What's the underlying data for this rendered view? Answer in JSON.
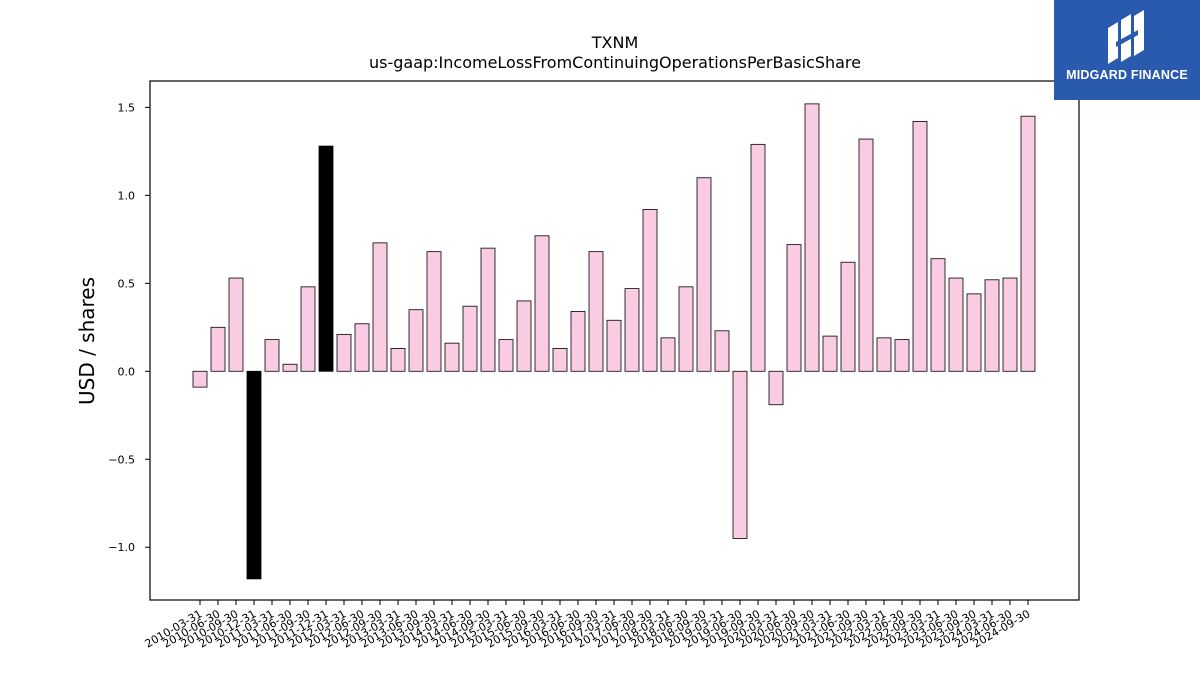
{
  "brand": {
    "name": "MIDGARD FINANCE",
    "color": "#2a5aad",
    "icon": "midgard-logo-icon"
  },
  "chart_data": {
    "type": "bar",
    "title": "TXNM",
    "subtitle": "us-gaap:IncomeLossFromContinuingOperationsPerBasicShare",
    "ylabel": "USD / shares",
    "xlabel": "",
    "ylim": [
      -1.3,
      1.65
    ],
    "yticks": [
      -1.0,
      -0.5,
      0.0,
      0.5,
      1.0,
      1.5
    ],
    "ytick_labels": [
      "−1.0",
      "−0.5",
      "0.0",
      "0.5",
      "1.0",
      "1.5"
    ],
    "grid": false,
    "bar_color": "#f9cce3",
    "highlight_color": "#000000",
    "categories": [
      "2010-03-31",
      "2010-06-30",
      "2010-09-30",
      "2010-12-31",
      "2011-03-31",
      "2011-06-30",
      "2011-09-30",
      "2011-12-31",
      "2012-03-31",
      "2012-06-30",
      "2012-09-30",
      "2013-03-31",
      "2013-06-30",
      "2013-09-30",
      "2014-03-31",
      "2014-06-30",
      "2014-09-30",
      "2015-03-31",
      "2015-06-30",
      "2015-09-30",
      "2016-03-31",
      "2016-06-30",
      "2016-09-30",
      "2017-03-31",
      "2017-06-30",
      "2017-09-30",
      "2018-03-31",
      "2018-06-30",
      "2018-09-30",
      "2019-03-31",
      "2019-06-30",
      "2019-09-30",
      "2020-03-31",
      "2020-06-30",
      "2020-09-30",
      "2021-03-31",
      "2021-06-30",
      "2021-09-30",
      "2022-03-31",
      "2022-06-30",
      "2022-09-30",
      "2023-03-31",
      "2023-06-30",
      "2023-09-30",
      "2024-03-31",
      "2024-06-30",
      "2024-09-30"
    ],
    "values": [
      -0.09,
      0.25,
      0.53,
      -1.18,
      0.18,
      0.04,
      0.48,
      1.28,
      0.21,
      0.27,
      0.73,
      0.13,
      0.35,
      0.68,
      0.16,
      0.37,
      0.7,
      0.18,
      0.4,
      0.77,
      0.13,
      0.34,
      0.68,
      0.29,
      0.47,
      0.92,
      0.19,
      0.48,
      1.1,
      0.23,
      -0.95,
      1.29,
      -0.19,
      0.72,
      1.52,
      0.2,
      0.62,
      1.32,
      0.19,
      0.18,
      1.42,
      0.64,
      0.53,
      0.44,
      0.52,
      0.53,
      1.45
    ],
    "highlighted": [
      3,
      7
    ]
  }
}
